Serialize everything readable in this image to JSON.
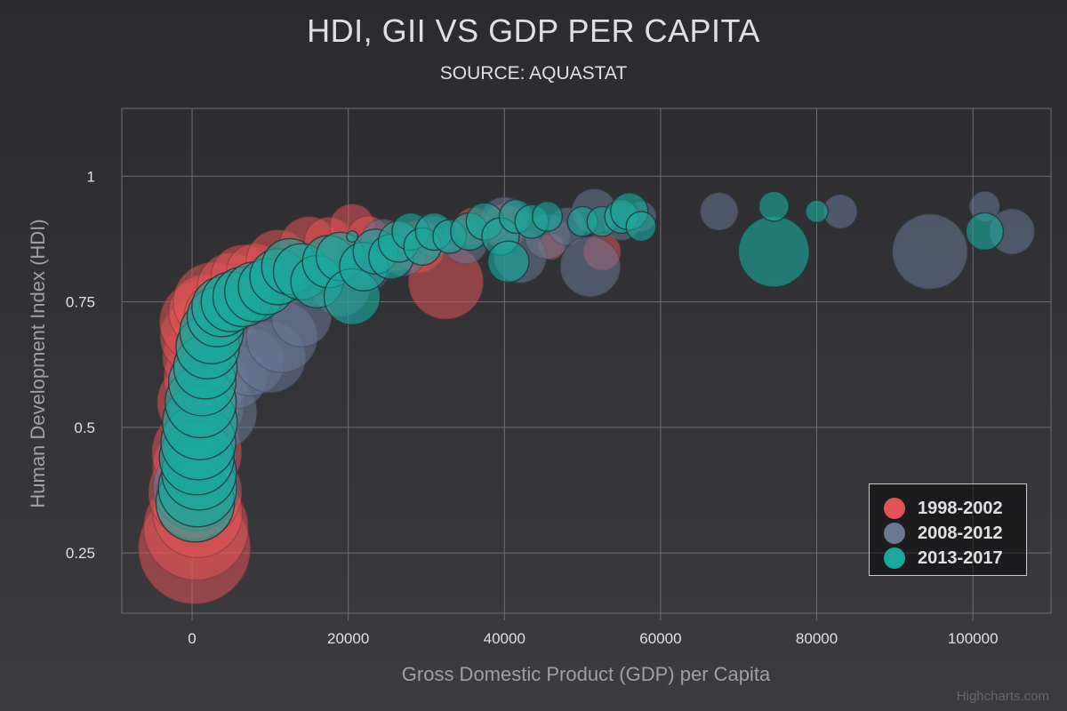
{
  "title": "HDI, GII VS GDP PER CAPITA",
  "subtitle": "SOURCE: AQUASTAT",
  "credits": "Highcharts.com",
  "chart_data": {
    "type": "scatter",
    "bubble": true,
    "xlabel": "Gross Domestic Product (GDP) per Capita",
    "ylabel": "Human Development Index (HDI)",
    "xlim": [
      -9000,
      110000
    ],
    "ylim": [
      0.13,
      1.135
    ],
    "xticks": [
      0,
      20000,
      40000,
      60000,
      80000,
      100000
    ],
    "yticks": [
      0.25,
      0.5,
      0.75,
      1
    ],
    "ytick_labels": [
      "0.25",
      "0.5",
      "0.75",
      "1"
    ],
    "grid": true,
    "legend_position": "bottom-right",
    "series": [
      {
        "name": "1998-2002",
        "color": "#e05455",
        "points": [
          [
            300,
            0.26,
            3.0
          ],
          [
            500,
            0.3,
            2.8
          ],
          [
            700,
            0.33,
            2.4
          ],
          [
            400,
            0.37,
            2.5
          ],
          [
            200,
            0.42,
            2.2
          ],
          [
            600,
            0.45,
            2.4
          ],
          [
            900,
            0.49,
            2.0
          ],
          [
            -600,
            0.44,
            1.2
          ],
          [
            -500,
            0.59,
            1.0
          ],
          [
            800,
            0.55,
            2.2
          ],
          [
            1400,
            0.6,
            2.1
          ],
          [
            1000,
            0.64,
            2.0
          ],
          [
            700,
            0.68,
            2.0
          ],
          [
            1100,
            0.71,
            2.2
          ],
          [
            1800,
            0.73,
            2.0
          ],
          [
            2600,
            0.75,
            2.1
          ],
          [
            3500,
            0.72,
            1.9
          ],
          [
            5000,
            0.78,
            1.8
          ],
          [
            6500,
            0.8,
            1.7
          ],
          [
            8000,
            0.81,
            1.5
          ],
          [
            11000,
            0.83,
            1.7
          ],
          [
            15000,
            0.86,
            1.6
          ],
          [
            17500,
            0.87,
            1.3
          ],
          [
            20500,
            0.9,
            1.2
          ],
          [
            22500,
            0.88,
            1.1
          ],
          [
            26000,
            0.86,
            1.3
          ],
          [
            29000,
            0.86,
            1.4
          ],
          [
            32500,
            0.79,
            2.0
          ],
          [
            36000,
            0.9,
            1.0
          ],
          [
            40000,
            0.9,
            1.2
          ],
          [
            52500,
            0.85,
            1.0
          ],
          [
            46000,
            0.86,
            0.7
          ]
        ]
      },
      {
        "name": "2008-2012",
        "color": "#687895",
        "points": [
          [
            500,
            0.38,
            2.3
          ],
          [
            900,
            0.44,
            2.0
          ],
          [
            1200,
            0.49,
            2.0
          ],
          [
            1800,
            0.54,
            2.0
          ],
          [
            3500,
            0.53,
            2.0
          ],
          [
            2600,
            0.59,
            1.9
          ],
          [
            5500,
            0.6,
            1.7
          ],
          [
            7500,
            0.63,
            1.8
          ],
          [
            10000,
            0.64,
            1.9
          ],
          [
            11500,
            0.68,
            1.9
          ],
          [
            14000,
            0.72,
            1.6
          ],
          [
            19000,
            0.78,
            1.6
          ],
          [
            22000,
            0.82,
            1.4
          ],
          [
            24500,
            0.87,
            1.2
          ],
          [
            27000,
            0.85,
            1.3
          ],
          [
            31000,
            0.88,
            1.1
          ],
          [
            35000,
            0.87,
            1.2
          ],
          [
            40000,
            0.91,
            1.3
          ],
          [
            42000,
            0.84,
            1.4
          ],
          [
            45500,
            0.88,
            1.2
          ],
          [
            48000,
            0.9,
            1.0
          ],
          [
            51000,
            0.82,
            1.6
          ],
          [
            51500,
            0.93,
            1.2
          ],
          [
            55000,
            0.91,
            1.0
          ],
          [
            57500,
            0.92,
            0.8
          ],
          [
            67500,
            0.93,
            1.0
          ],
          [
            83000,
            0.93,
            0.9
          ],
          [
            94500,
            0.85,
            2.0
          ],
          [
            101500,
            0.94,
            0.8
          ],
          [
            105000,
            0.89,
            1.2
          ]
        ]
      },
      {
        "name": "2013-2017",
        "color": "#1aa89c",
        "points": [
          [
            400,
            0.35,
            2.1
          ],
          [
            700,
            0.38,
            2.1
          ],
          [
            900,
            0.41,
            2.0
          ],
          [
            600,
            0.44,
            2.0
          ],
          [
            800,
            0.47,
            2.0
          ],
          [
            1000,
            0.51,
            2.0
          ],
          [
            1100,
            0.55,
            1.9
          ],
          [
            1300,
            0.59,
            1.8
          ],
          [
            1700,
            0.62,
            1.7
          ],
          [
            2000,
            0.66,
            1.7
          ],
          [
            2500,
            0.69,
            1.7
          ],
          [
            3200,
            0.72,
            1.6
          ],
          [
            3800,
            0.74,
            1.6
          ],
          [
            5000,
            0.75,
            1.6
          ],
          [
            6500,
            0.76,
            1.6
          ],
          [
            8000,
            0.77,
            1.6
          ],
          [
            9500,
            0.78,
            1.5
          ],
          [
            11000,
            0.8,
            1.5
          ],
          [
            12500,
            0.82,
            1.5
          ],
          [
            14000,
            0.81,
            1.5
          ],
          [
            16000,
            0.79,
            1.4
          ],
          [
            17500,
            0.83,
            1.4
          ],
          [
            19000,
            0.84,
            1.3
          ],
          [
            20500,
            0.76,
            1.5
          ],
          [
            22000,
            0.82,
            1.3
          ],
          [
            23500,
            0.85,
            1.2
          ],
          [
            25500,
            0.84,
            1.2
          ],
          [
            26500,
            0.87,
            1.1
          ],
          [
            28000,
            0.89,
            1.0
          ],
          [
            29500,
            0.86,
            1.0
          ],
          [
            31000,
            0.89,
            1.0
          ],
          [
            33000,
            0.88,
            0.9
          ],
          [
            35500,
            0.89,
            1.0
          ],
          [
            37500,
            0.91,
            1.0
          ],
          [
            39500,
            0.88,
            1.0
          ],
          [
            40500,
            0.83,
            1.1
          ],
          [
            41500,
            0.92,
            0.9
          ],
          [
            43500,
            0.91,
            0.9
          ],
          [
            45500,
            0.92,
            0.8
          ],
          [
            50000,
            0.91,
            0.8
          ],
          [
            52500,
            0.91,
            0.8
          ],
          [
            55000,
            0.92,
            0.9
          ],
          [
            56000,
            0.93,
            1.0
          ],
          [
            57500,
            0.9,
            0.8
          ],
          [
            74500,
            0.85,
            1.9
          ],
          [
            74500,
            0.94,
            0.8
          ],
          [
            80000,
            0.93,
            0.6
          ],
          [
            101500,
            0.89,
            1.0
          ],
          [
            20500,
            0.88,
            0.3
          ]
        ]
      }
    ]
  }
}
